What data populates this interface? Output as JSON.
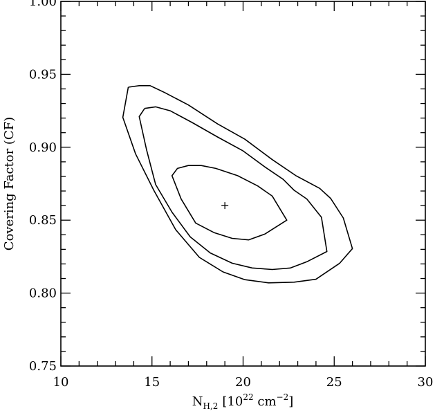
{
  "chart_data": {
    "type": "contour",
    "xlabel": {
      "main": "N",
      "sub": "H,2",
      "bracket_open": "[10",
      "exp1": "22",
      "unit": " cm",
      "exp2": "−2",
      "bracket_close": "]"
    },
    "ylabel": "Covering Factor (CF)",
    "xlim": [
      10,
      30
    ],
    "ylim": [
      0.75,
      1.0
    ],
    "x_ticks": [
      10,
      15,
      20,
      25,
      30
    ],
    "x_tick_labels": [
      "10",
      "15",
      "20",
      "25",
      "30"
    ],
    "y_ticks": [
      0.75,
      0.8,
      0.85,
      0.9,
      0.95,
      1.0
    ],
    "y_tick_labels": [
      "0.75",
      "0.80",
      "0.85",
      "0.90",
      "0.95",
      "1.00"
    ],
    "best_fit": {
      "x": 19.0,
      "y": 0.86,
      "marker": "+"
    },
    "contours": [
      {
        "name": "inner",
        "points": [
          [
            17.7,
            0.8875
          ],
          [
            18.5,
            0.8855
          ],
          [
            19.7,
            0.8805
          ],
          [
            20.8,
            0.8735
          ],
          [
            21.6,
            0.8665
          ],
          [
            22.4,
            0.85
          ],
          [
            21.2,
            0.8405
          ],
          [
            20.3,
            0.8365
          ],
          [
            19.4,
            0.8375
          ],
          [
            18.4,
            0.8415
          ],
          [
            17.4,
            0.848
          ],
          [
            16.6,
            0.8645
          ],
          [
            16.1,
            0.8805
          ],
          [
            16.4,
            0.8855
          ],
          [
            17.0,
            0.8875
          ],
          [
            17.7,
            0.8875
          ]
        ]
      },
      {
        "name": "middle",
        "points": [
          [
            14.6,
            0.9266
          ],
          [
            15.2,
            0.9277
          ],
          [
            16.0,
            0.925
          ],
          [
            17.2,
            0.917
          ],
          [
            18.6,
            0.907
          ],
          [
            20.0,
            0.8975
          ],
          [
            21.2,
            0.8865
          ],
          [
            22.2,
            0.878
          ],
          [
            22.8,
            0.8705
          ],
          [
            23.5,
            0.8645
          ],
          [
            24.3,
            0.852
          ],
          [
            24.6,
            0.8285
          ],
          [
            23.5,
            0.8215
          ],
          [
            22.6,
            0.8172
          ],
          [
            21.6,
            0.8162
          ],
          [
            20.5,
            0.8172
          ],
          [
            19.4,
            0.8205
          ],
          [
            18.2,
            0.8275
          ],
          [
            17.1,
            0.8385
          ],
          [
            16.1,
            0.8555
          ],
          [
            15.2,
            0.8745
          ],
          [
            14.7,
            0.8985
          ],
          [
            14.3,
            0.921
          ],
          [
            14.6,
            0.9266
          ]
        ]
      },
      {
        "name": "outer",
        "points": [
          [
            13.7,
            0.9412
          ],
          [
            14.3,
            0.9422
          ],
          [
            14.9,
            0.9422
          ],
          [
            15.7,
            0.9375
          ],
          [
            17.0,
            0.929
          ],
          [
            18.6,
            0.916
          ],
          [
            20.1,
            0.9055
          ],
          [
            21.6,
            0.8915
          ],
          [
            22.9,
            0.8805
          ],
          [
            24.2,
            0.8718
          ],
          [
            24.8,
            0.865
          ],
          [
            25.5,
            0.8515
          ],
          [
            26.0,
            0.8305
          ],
          [
            25.3,
            0.8205
          ],
          [
            24.0,
            0.8095
          ],
          [
            22.8,
            0.8075
          ],
          [
            21.4,
            0.807
          ],
          [
            20.1,
            0.8092
          ],
          [
            18.9,
            0.8145
          ],
          [
            17.6,
            0.8245
          ],
          [
            16.3,
            0.8435
          ],
          [
            15.1,
            0.8705
          ],
          [
            14.1,
            0.8955
          ],
          [
            13.4,
            0.9205
          ],
          [
            13.7,
            0.9412
          ]
        ]
      }
    ]
  }
}
